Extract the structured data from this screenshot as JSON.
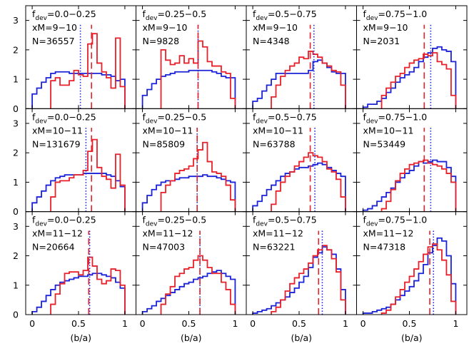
{
  "chart_data": {
    "type": "step-histogram grid",
    "rows": 3,
    "cols": 4,
    "xlabel": "(b/a)",
    "ylabel": "",
    "xlim": [
      -0.07,
      1.12
    ],
    "ylim": [
      0,
      3.5
    ],
    "x_ticks": [
      "0",
      "0.5",
      "1"
    ],
    "y_ticks": [
      "0",
      "1",
      "2",
      "3"
    ],
    "bin_edges": [
      0.2,
      0.25,
      0.3,
      0.35,
      0.4,
      0.45,
      0.5,
      0.55,
      0.6,
      0.65,
      0.7,
      0.75,
      0.8,
      0.85,
      0.9,
      0.95,
      1.0
    ],
    "blue_bin_edges": [
      0.0,
      0.05,
      0.1,
      0.15,
      0.2,
      0.25,
      0.3,
      0.35,
      0.4,
      0.45,
      0.5,
      0.55,
      0.6,
      0.65,
      0.7,
      0.75,
      0.8,
      0.85,
      0.9,
      0.95,
      1.0
    ],
    "colors": {
      "red": "#e8202a",
      "blue": "#1a22d8"
    },
    "panels": [
      {
        "label_sub": "dev",
        "label_range": "=0.0−0.25",
        "xm": "xM=9−10",
        "n": "N=36557",
        "red_median": 0.64,
        "blue_median": 0.52,
        "red": [
          0.95,
          1.05,
          0.8,
          0.8,
          0.95,
          1.3,
          1.15,
          1.1,
          2.2,
          2.55,
          1.55,
          1.25,
          1.05,
          0.7,
          2.4,
          0.75
        ],
        "blue": [
          0.5,
          0.7,
          0.9,
          1.05,
          1.2,
          1.25,
          1.25,
          1.25,
          1.2,
          1.2,
          1.2,
          1.2,
          1.2,
          1.2,
          1.2,
          1.15,
          1.15,
          1.1,
          0.95,
          1.0
        ]
      },
      {
        "label_sub": "dev",
        "label_range": "=0.25−0.5",
        "xm": "xM=9−10",
        "n": "N=9828",
        "red_median": 0.6,
        "blue_median": 0.6,
        "red": [
          2.0,
          1.65,
          1.5,
          1.55,
          1.8,
          1.55,
          1.7,
          1.55,
          2.3,
          2.1,
          1.6,
          1.45,
          1.45,
          1.25,
          1.2,
          0.35
        ],
        "blue": [
          0.45,
          0.65,
          0.85,
          1.0,
          1.1,
          1.15,
          1.2,
          1.25,
          1.25,
          1.25,
          1.3,
          1.3,
          1.3,
          1.3,
          1.3,
          1.25,
          1.2,
          1.1,
          1.05,
          1.05
        ]
      },
      {
        "label_sub": "dev",
        "label_range": "=0.5−0.75",
        "xm": "xM=9−10",
        "n": "N=4348",
        "red_median": 0.62,
        "blue_median": 0.66,
        "red": [
          0.4,
          0.8,
          1.1,
          1.3,
          1.45,
          1.55,
          1.75,
          1.7,
          1.95,
          1.85,
          1.75,
          1.55,
          1.45,
          1.3,
          1.25,
          0.8
        ],
        "blue": [
          0.25,
          0.35,
          0.6,
          0.8,
          1.0,
          1.2,
          1.2,
          1.2,
          1.2,
          1.2,
          1.2,
          1.2,
          1.3,
          1.6,
          1.65,
          1.55,
          1.4,
          1.25,
          1.2,
          1.2
        ]
      },
      {
        "label_sub": "dev",
        "label_range": "=0.75−1.0",
        "xm": "xM=9−10",
        "n": "N=2031",
        "red_median": 0.66,
        "blue_median": 0.73,
        "red": [
          0.45,
          0.7,
          0.9,
          1.1,
          1.2,
          1.4,
          1.55,
          1.65,
          1.7,
          1.85,
          1.8,
          1.9,
          1.6,
          1.5,
          1.35,
          0.45
        ],
        "blue": [
          0.05,
          0.15,
          0.15,
          0.25,
          0.35,
          0.55,
          0.7,
          0.9,
          1.05,
          1.15,
          1.25,
          1.4,
          1.6,
          1.75,
          1.9,
          2.05,
          2.1,
          2.0,
          1.95,
          1.6
        ]
      },
      {
        "label_sub": "dev",
        "label_range": "=0.0−0.25",
        "xm": "xM=10−11",
        "n": "N=131679",
        "red_median": 0.64,
        "blue_median": 0.58,
        "red": [
          0.5,
          1.0,
          1.05,
          1.05,
          1.15,
          1.25,
          1.25,
          1.4,
          2.05,
          2.45,
          1.5,
          1.2,
          1.1,
          0.8,
          1.95,
          0.9
        ],
        "blue": [
          0.3,
          0.5,
          0.7,
          0.9,
          1.05,
          1.15,
          1.2,
          1.25,
          1.25,
          1.25,
          1.25,
          1.3,
          1.3,
          1.3,
          1.3,
          1.3,
          1.25,
          1.2,
          1.05,
          0.85
        ]
      },
      {
        "label_sub": "dev",
        "label_range": "=0.25−0.5",
        "xm": "xM=10−11",
        "n": "N=85809",
        "red_median": 0.59,
        "blue_median": 0.59,
        "red": [
          0.65,
          0.9,
          1.05,
          1.3,
          1.4,
          1.45,
          1.55,
          1.8,
          2.1,
          2.35,
          1.7,
          1.35,
          1.3,
          1.2,
          0.9,
          0.4
        ],
        "blue": [
          0.3,
          0.55,
          0.75,
          0.9,
          1.0,
          1.05,
          1.05,
          1.1,
          1.15,
          1.15,
          1.2,
          1.2,
          1.2,
          1.25,
          1.2,
          1.2,
          1.15,
          1.1,
          1.05,
          1.0
        ]
      },
      {
        "label_sub": "dev",
        "label_range": "=0.5−0.75",
        "xm": "xM=10−11",
        "n": "N=63788",
        "red_median": 0.62,
        "blue_median": 0.67,
        "red": [
          0.25,
          0.7,
          1.0,
          1.2,
          1.35,
          1.55,
          1.7,
          1.85,
          2.0,
          1.9,
          1.85,
          1.7,
          1.45,
          1.35,
          1.1,
          0.5
        ],
        "blue": [
          0.2,
          0.35,
          0.55,
          0.75,
          0.9,
          1.05,
          1.2,
          1.3,
          1.35,
          1.45,
          1.5,
          1.5,
          1.55,
          1.6,
          1.65,
          1.6,
          1.5,
          1.4,
          1.3,
          1.2
        ]
      },
      {
        "label_sub": "dev",
        "label_range": "=0.75−1.0",
        "xm": "xM=10−11",
        "n": "N=53449",
        "red_median": 0.66,
        "blue_median": 0.73,
        "red": [
          0.1,
          0.35,
          0.75,
          1.05,
          1.3,
          1.45,
          1.6,
          1.65,
          1.7,
          1.75,
          1.65,
          1.6,
          1.55,
          1.45,
          1.3,
          1.0
        ],
        "blue": [
          0.05,
          0.1,
          0.2,
          0.35,
          0.5,
          0.65,
          0.8,
          1.0,
          1.15,
          1.3,
          1.4,
          1.55,
          1.7,
          1.65,
          1.7,
          1.75,
          1.7,
          1.7,
          1.5,
          1.2
        ]
      },
      {
        "label_sub": "dev",
        "label_range": "=0.0−0.25",
        "xm": "xM=11−12",
        "n": "N=20664",
        "red_median": 0.61,
        "blue_median": 0.62,
        "red": [
          0.35,
          0.7,
          1.05,
          1.4,
          1.45,
          1.45,
          1.35,
          1.5,
          1.95,
          1.65,
          1.2,
          1.05,
          1.15,
          1.55,
          1.5,
          1.0
        ],
        "blue": [
          0.1,
          0.25,
          0.45,
          0.65,
          0.85,
          1.0,
          1.1,
          1.15,
          1.2,
          1.25,
          1.3,
          1.3,
          1.35,
          1.4,
          1.4,
          1.35,
          1.3,
          1.25,
          1.1,
          0.9
        ]
      },
      {
        "label_sub": "dev",
        "label_range": "=0.25−0.5",
        "xm": "xM=11−12",
        "n": "N=47003",
        "red_median": 0.62,
        "blue_median": 0.62,
        "red": [
          0.35,
          0.7,
          0.95,
          1.3,
          1.4,
          1.55,
          1.6,
          1.85,
          2.0,
          1.85,
          1.6,
          1.4,
          1.4,
          1.1,
          0.85,
          0.35
        ],
        "blue": [
          0.1,
          0.2,
          0.3,
          0.45,
          0.55,
          0.65,
          0.75,
          0.85,
          0.95,
          1.05,
          1.1,
          1.2,
          1.25,
          1.3,
          1.4,
          1.45,
          1.5,
          1.4,
          1.3,
          1.2
        ]
      },
      {
        "label_sub": "dev",
        "label_range": "=0.5−0.75",
        "xm": "xM=11−12",
        "n": "N=63221",
        "red_median": 0.71,
        "blue_median": 0.75,
        "red": [
          0.1,
          0.25,
          0.5,
          0.8,
          1.05,
          1.25,
          1.4,
          1.55,
          1.75,
          2.0,
          2.2,
          2.35,
          2.2,
          1.9,
          1.45,
          0.5
        ],
        "blue": [
          0.05,
          0.1,
          0.15,
          0.2,
          0.3,
          0.4,
          0.5,
          0.6,
          0.75,
          0.9,
          1.1,
          1.3,
          1.6,
          1.95,
          2.1,
          2.3,
          2.2,
          2.05,
          1.55,
          0.85
        ]
      },
      {
        "label_sub": "dev",
        "label_range": "=0.75−1.0",
        "xm": "xM=11−12",
        "n": "N=47318",
        "red_median": 0.72,
        "blue_median": 0.76,
        "red": [
          0.05,
          0.15,
          0.35,
          0.6,
          0.85,
          1.1,
          1.3,
          1.55,
          1.8,
          2.05,
          2.3,
          2.4,
          2.2,
          1.85,
          1.35,
          0.45
        ],
        "blue": [
          0.05,
          0.05,
          0.1,
          0.15,
          0.2,
          0.25,
          0.35,
          0.5,
          0.65,
          0.8,
          0.95,
          1.15,
          1.4,
          1.7,
          2.1,
          2.35,
          2.6,
          2.5,
          2.0,
          1.05
        ]
      }
    ]
  }
}
